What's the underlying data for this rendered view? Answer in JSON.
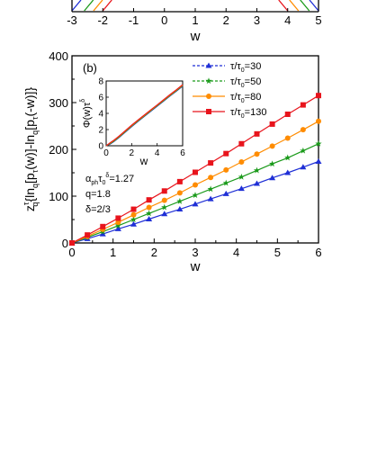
{
  "top_strip": {
    "x_ticks": [
      "-3",
      "-2",
      "-1",
      "0",
      "1",
      "2",
      "3",
      "4",
      "5"
    ],
    "xlabel": "w",
    "line_colors": [
      "#1f2fd6",
      "#1a9a1a",
      "#ff8c00",
      "#e8141c"
    ]
  },
  "chart_data": {
    "type": "line",
    "panel_label": "(b)",
    "xlabel": "w",
    "ylabel": "zτq{lnq[pτ(w)]-lnq[pτ(-w)]}",
    "xlim": [
      0,
      6
    ],
    "ylim": [
      0,
      400
    ],
    "x_ticks": [
      "0",
      "1",
      "2",
      "3",
      "4",
      "5",
      "6"
    ],
    "y_ticks": [
      "0",
      "100",
      "200",
      "300",
      "400"
    ],
    "grid": false,
    "legend_position": "top-right",
    "series": [
      {
        "name": "τ/τ0=30",
        "color": "#1f2fd6",
        "marker": "triangle",
        "x": [
          0,
          0.375,
          0.75,
          1.125,
          1.5,
          1.875,
          2.25,
          2.625,
          3.0,
          3.375,
          3.75,
          4.125,
          4.5,
          4.875,
          5.25,
          5.625,
          6.0
        ],
        "y": [
          0,
          9,
          19,
          30,
          40,
          51,
          62,
          72,
          83,
          94,
          105,
          116,
          127,
          139,
          150,
          162,
          174
        ]
      },
      {
        "name": "τ/τ0=50",
        "color": "#1a9a1a",
        "marker": "star",
        "x": [
          0,
          0.375,
          0.75,
          1.125,
          1.5,
          1.875,
          2.25,
          2.625,
          3.0,
          3.375,
          3.75,
          4.125,
          4.5,
          4.875,
          5.25,
          5.625,
          6.0
        ],
        "y": [
          0,
          12,
          24,
          37,
          50,
          63,
          76,
          89,
          102,
          115,
          128,
          141,
          155,
          169,
          182,
          197,
          212
        ]
      },
      {
        "name": "τ/τ0=80",
        "color": "#ff8c00",
        "marker": "circle",
        "x": [
          0,
          0.375,
          0.75,
          1.125,
          1.5,
          1.875,
          2.25,
          2.625,
          3.0,
          3.375,
          3.75,
          4.125,
          4.5,
          4.875,
          5.25,
          5.625,
          6.0
        ],
        "y": [
          0,
          14,
          29,
          44,
          60,
          76,
          91,
          107,
          124,
          140,
          156,
          173,
          190,
          207,
          224,
          242,
          260
        ]
      },
      {
        "name": "τ/τ0=130",
        "color": "#e8141c",
        "marker": "square",
        "x": [
          0,
          0.375,
          0.75,
          1.125,
          1.5,
          1.875,
          2.25,
          2.625,
          3.0,
          3.375,
          3.75,
          4.125,
          4.5,
          4.875,
          5.25,
          5.625,
          6.0
        ],
        "y": [
          0,
          17,
          35,
          53,
          72,
          92,
          111,
          131,
          151,
          171,
          191,
          212,
          233,
          254,
          275,
          295,
          315
        ]
      }
    ],
    "annotations": [
      "αphτ0δ=1.27",
      "q=1.8",
      "δ=2/3"
    ],
    "inset": {
      "xlabel": "w",
      "ylabel": "Φ(w)τδ",
      "xlim": [
        0,
        6
      ],
      "ylim": [
        0,
        8
      ],
      "x_ticks": [
        "0",
        "2",
        "4",
        "6"
      ],
      "y_ticks": [
        "0",
        "2",
        "4",
        "6",
        "8"
      ],
      "x": [
        0,
        0.3,
        0.6,
        1.0,
        1.5,
        2.0,
        2.5,
        3.0,
        3.5,
        4.0,
        4.5,
        5.0,
        5.5,
        6.0
      ],
      "y": [
        0,
        0.28,
        0.6,
        1.1,
        1.78,
        2.45,
        3.1,
        3.72,
        4.35,
        4.97,
        5.6,
        6.22,
        6.82,
        7.45
      ]
    }
  }
}
